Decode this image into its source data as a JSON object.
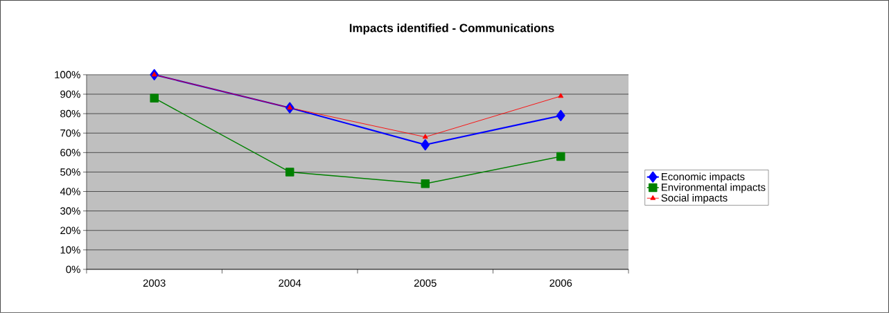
{
  "chart_data": {
    "type": "line",
    "title": "Impacts identified - Communications",
    "categories": [
      "2003",
      "2004",
      "2005",
      "2006"
    ],
    "series": [
      {
        "name": "Economic impacts",
        "color": "#0000ff",
        "marker": "diamond",
        "values": [
          100,
          83,
          64,
          79
        ]
      },
      {
        "name": "Environmental impacts",
        "color": "#008000",
        "marker": "square",
        "values": [
          88,
          50,
          44,
          58
        ]
      },
      {
        "name": "Social impacts",
        "color": "#ff0000",
        "marker": "triangle",
        "values": [
          100,
          83,
          68,
          89
        ]
      }
    ],
    "ylim": [
      0,
      100
    ],
    "yticks": [
      {
        "value": 0,
        "label": "0%"
      },
      {
        "value": 10,
        "label": "10%"
      },
      {
        "value": 20,
        "label": "20%"
      },
      {
        "value": 30,
        "label": "30%"
      },
      {
        "value": 40,
        "label": "40%"
      },
      {
        "value": 50,
        "label": "50%"
      },
      {
        "value": 60,
        "label": "60%"
      },
      {
        "value": 70,
        "label": "70%"
      },
      {
        "value": 80,
        "label": "80%"
      },
      {
        "value": 90,
        "label": "90%"
      },
      {
        "value": 100,
        "label": "100%"
      }
    ],
    "grid": "y",
    "legend": "right",
    "line_style": "solid"
  }
}
